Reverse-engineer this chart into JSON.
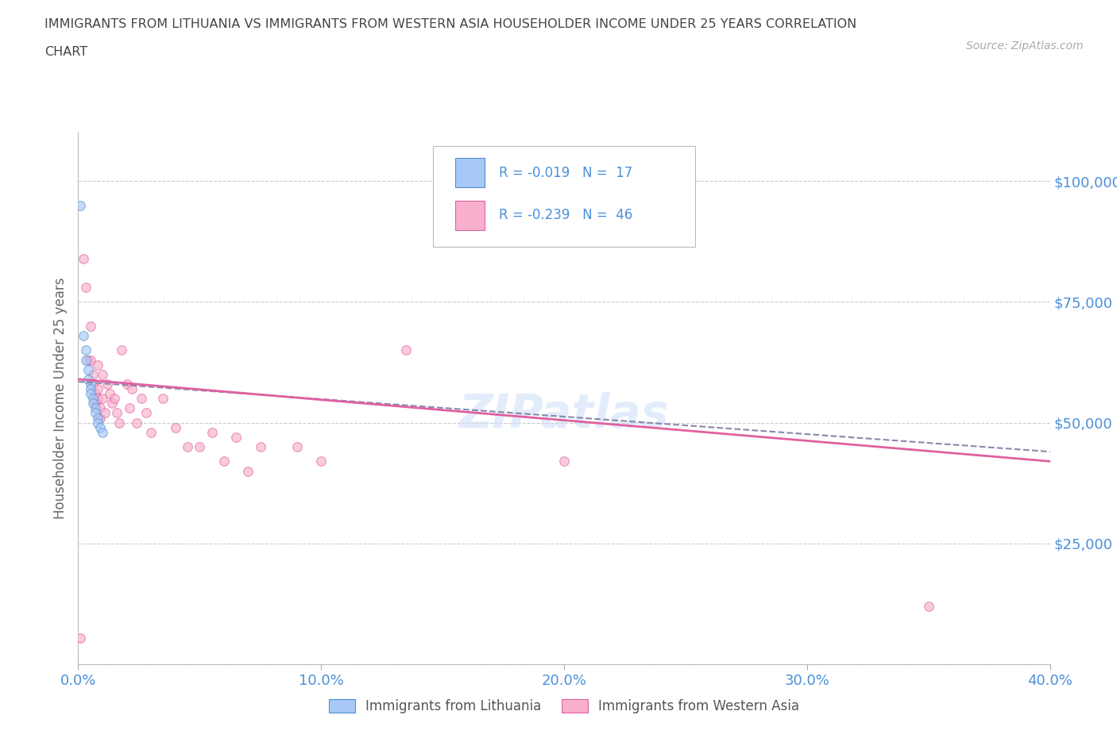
{
  "title_line1": "IMMIGRANTS FROM LITHUANIA VS IMMIGRANTS FROM WESTERN ASIA HOUSEHOLDER INCOME UNDER 25 YEARS CORRELATION",
  "title_line2": "CHART",
  "source": "Source: ZipAtlas.com",
  "ylabel": "Householder Income Under 25 years",
  "xlim": [
    0.0,
    0.4
  ],
  "ylim": [
    0,
    110000
  ],
  "yticks": [
    0,
    25000,
    50000,
    75000,
    100000
  ],
  "ytick_labels": [
    "",
    "$25,000",
    "$50,000",
    "$75,000",
    "$100,000"
  ],
  "xticks": [
    0.0,
    0.1,
    0.2,
    0.3,
    0.4
  ],
  "xtick_labels": [
    "0.0%",
    "10.0%",
    "20.0%",
    "30.0%",
    "40.0%"
  ],
  "color_lithuania": "#a8c8f8",
  "color_western_asia": "#f8b0cc",
  "edge_lithuania": "#5090d0",
  "edge_western_asia": "#e060a0",
  "background_color": "#ffffff",
  "grid_color": "#cccccc",
  "dot_size": 70,
  "dot_alpha": 0.65,
  "font_color_title": "#444444",
  "font_color_axis": "#4a90d9",
  "watermark": "ZIPatlas",
  "lithuania_x": [
    0.001,
    0.002,
    0.003,
    0.003,
    0.004,
    0.004,
    0.005,
    0.005,
    0.005,
    0.006,
    0.006,
    0.007,
    0.007,
    0.008,
    0.008,
    0.009,
    0.01
  ],
  "lithuania_y": [
    95000,
    68000,
    65000,
    63000,
    61000,
    59000,
    58000,
    57000,
    56000,
    55000,
    54000,
    53000,
    52000,
    51000,
    50000,
    49000,
    48000
  ],
  "western_asia_x": [
    0.001,
    0.002,
    0.003,
    0.004,
    0.005,
    0.005,
    0.006,
    0.006,
    0.007,
    0.007,
    0.008,
    0.008,
    0.008,
    0.009,
    0.009,
    0.01,
    0.01,
    0.011,
    0.012,
    0.013,
    0.014,
    0.015,
    0.016,
    0.017,
    0.018,
    0.02,
    0.021,
    0.022,
    0.024,
    0.026,
    0.028,
    0.03,
    0.035,
    0.04,
    0.045,
    0.05,
    0.055,
    0.06,
    0.065,
    0.07,
    0.075,
    0.09,
    0.1,
    0.135,
    0.2,
    0.35
  ],
  "western_asia_y": [
    5500,
    84000,
    78000,
    63000,
    70000,
    63000,
    60000,
    58000,
    56000,
    54000,
    62000,
    57000,
    55000,
    53000,
    51000,
    60000,
    55000,
    52000,
    58000,
    56000,
    54000,
    55000,
    52000,
    50000,
    65000,
    58000,
    53000,
    57000,
    50000,
    55000,
    52000,
    48000,
    55000,
    49000,
    45000,
    45000,
    48000,
    42000,
    47000,
    40000,
    45000,
    45000,
    42000,
    65000,
    42000,
    12000
  ],
  "lith_line_x0": 0.0,
  "lith_line_y0": 58500,
  "lith_line_x1": 0.4,
  "lith_line_y1": 44000,
  "wa_line_x0": 0.0,
  "wa_line_y0": 59000,
  "wa_line_x1": 0.4,
  "wa_line_y1": 42000
}
